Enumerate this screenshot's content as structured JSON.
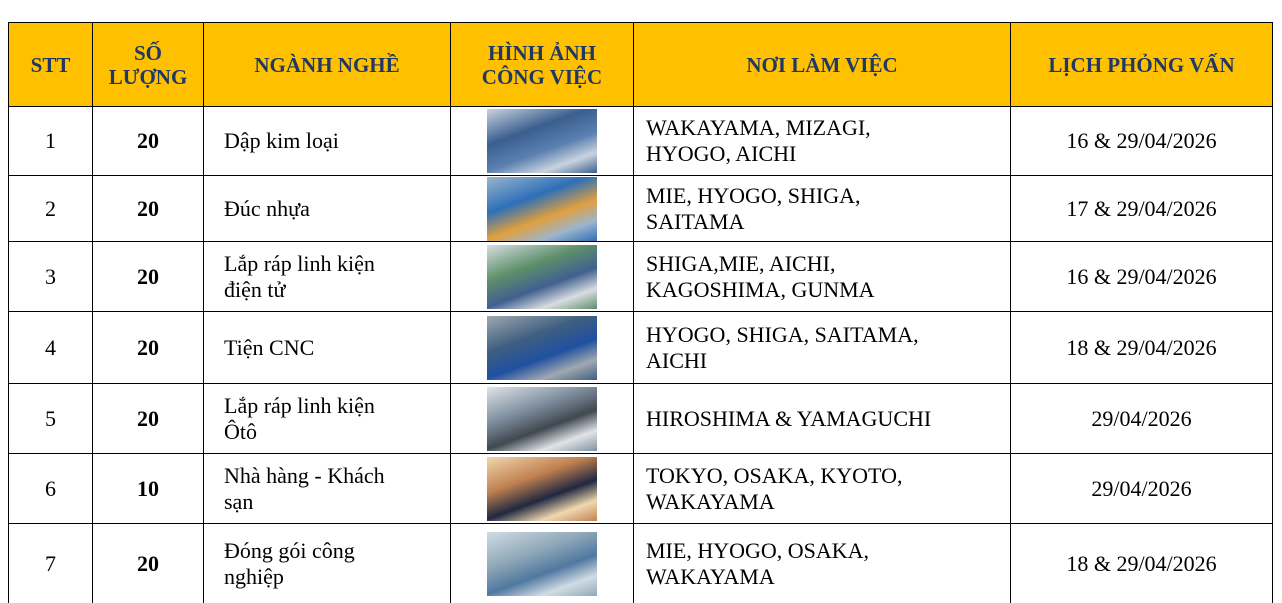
{
  "table": {
    "header": [
      "STT",
      [
        "SỐ",
        "LƯỢNG"
      ],
      "NGÀNH NGHỀ",
      [
        "HÌNH ẢNH",
        "CÔNG VIỆC"
      ],
      "NƠI LÀM VIỆC",
      "LỊCH PHỎNG VẤN"
    ],
    "rows": [
      {
        "stt": "1",
        "count": "20",
        "job": [
          "Dập kim loại"
        ],
        "place": [
          "WAKAYAMA, MIZAGI,",
          "HYOGO, AICHI"
        ],
        "date": "16 & 29/04/2026"
      },
      {
        "stt": "2",
        "count": "20",
        "job": [
          "Đúc nhựa"
        ],
        "place": [
          "MIE, HYOGO, SHIGA,",
          "SAITAMA"
        ],
        "date": "17 & 29/04/2026"
      },
      {
        "stt": "3",
        "count": "20",
        "job": [
          "Lắp ráp linh kiện",
          "điện tử"
        ],
        "place": [
          "SHIGA,MIE, AICHI,",
          "KAGOSHIMA, GUNMA"
        ],
        "date": "16 & 29/04/2026"
      },
      {
        "stt": "4",
        "count": "20",
        "job": [
          "Tiện CNC"
        ],
        "place": [
          "HYOGO, SHIGA, SAITAMA,",
          "AICHI"
        ],
        "date": "18 & 29/04/2026"
      },
      {
        "stt": "5",
        "count": "20",
        "job": [
          "Lắp ráp linh kiện",
          "Ôtô"
        ],
        "place": [
          "HIROSHIMA & YAMAGUCHI"
        ],
        "date": "29/04/2026"
      },
      {
        "stt": "6",
        "count": "10",
        "job": [
          "Nhà hàng - Khách",
          "sạn"
        ],
        "place": [
          "TOKYO, OSAKA, KYOTO,",
          "WAKAYAMA"
        ],
        "date": "29/04/2026"
      },
      {
        "stt": "7",
        "count": "20",
        "job": [
          "Đóng gói công",
          "nghiệp"
        ],
        "place": [
          "MIE, HYOGO, OSAKA,",
          "WAKAYAMA"
        ],
        "date": "18 & 29/04/2026"
      }
    ]
  }
}
